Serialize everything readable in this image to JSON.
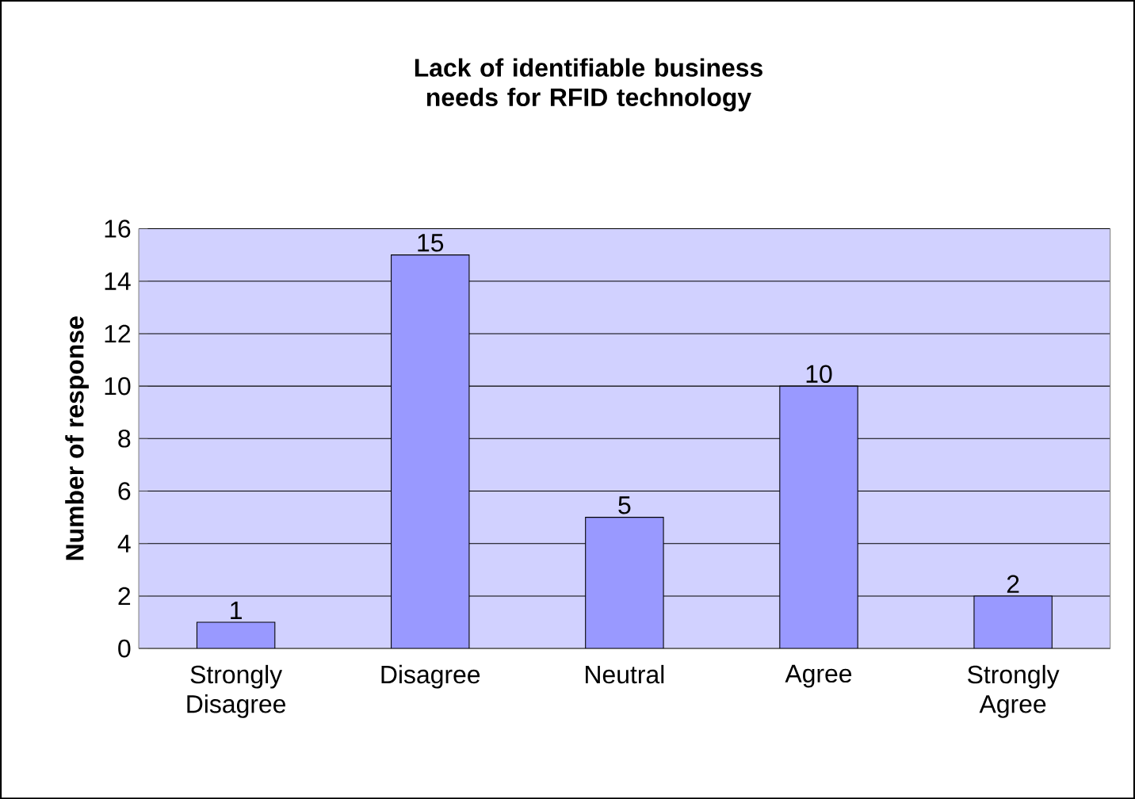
{
  "chart_data": {
    "type": "bar",
    "title": "Lack of identifiable business needs for RFID technology",
    "ylabel": "Number of response",
    "categories": [
      "Strongly Disagree",
      "Disagree",
      "Neutral",
      "Agree",
      "Strongly Agree"
    ],
    "values": [
      1,
      15,
      5,
      10,
      2
    ],
    "color": "#9999ff",
    "ylim": [
      0,
      16
    ],
    "yticks": [
      0,
      2,
      4,
      6,
      8,
      10,
      12,
      14,
      16
    ],
    "grid": "y",
    "data_labels": true
  }
}
